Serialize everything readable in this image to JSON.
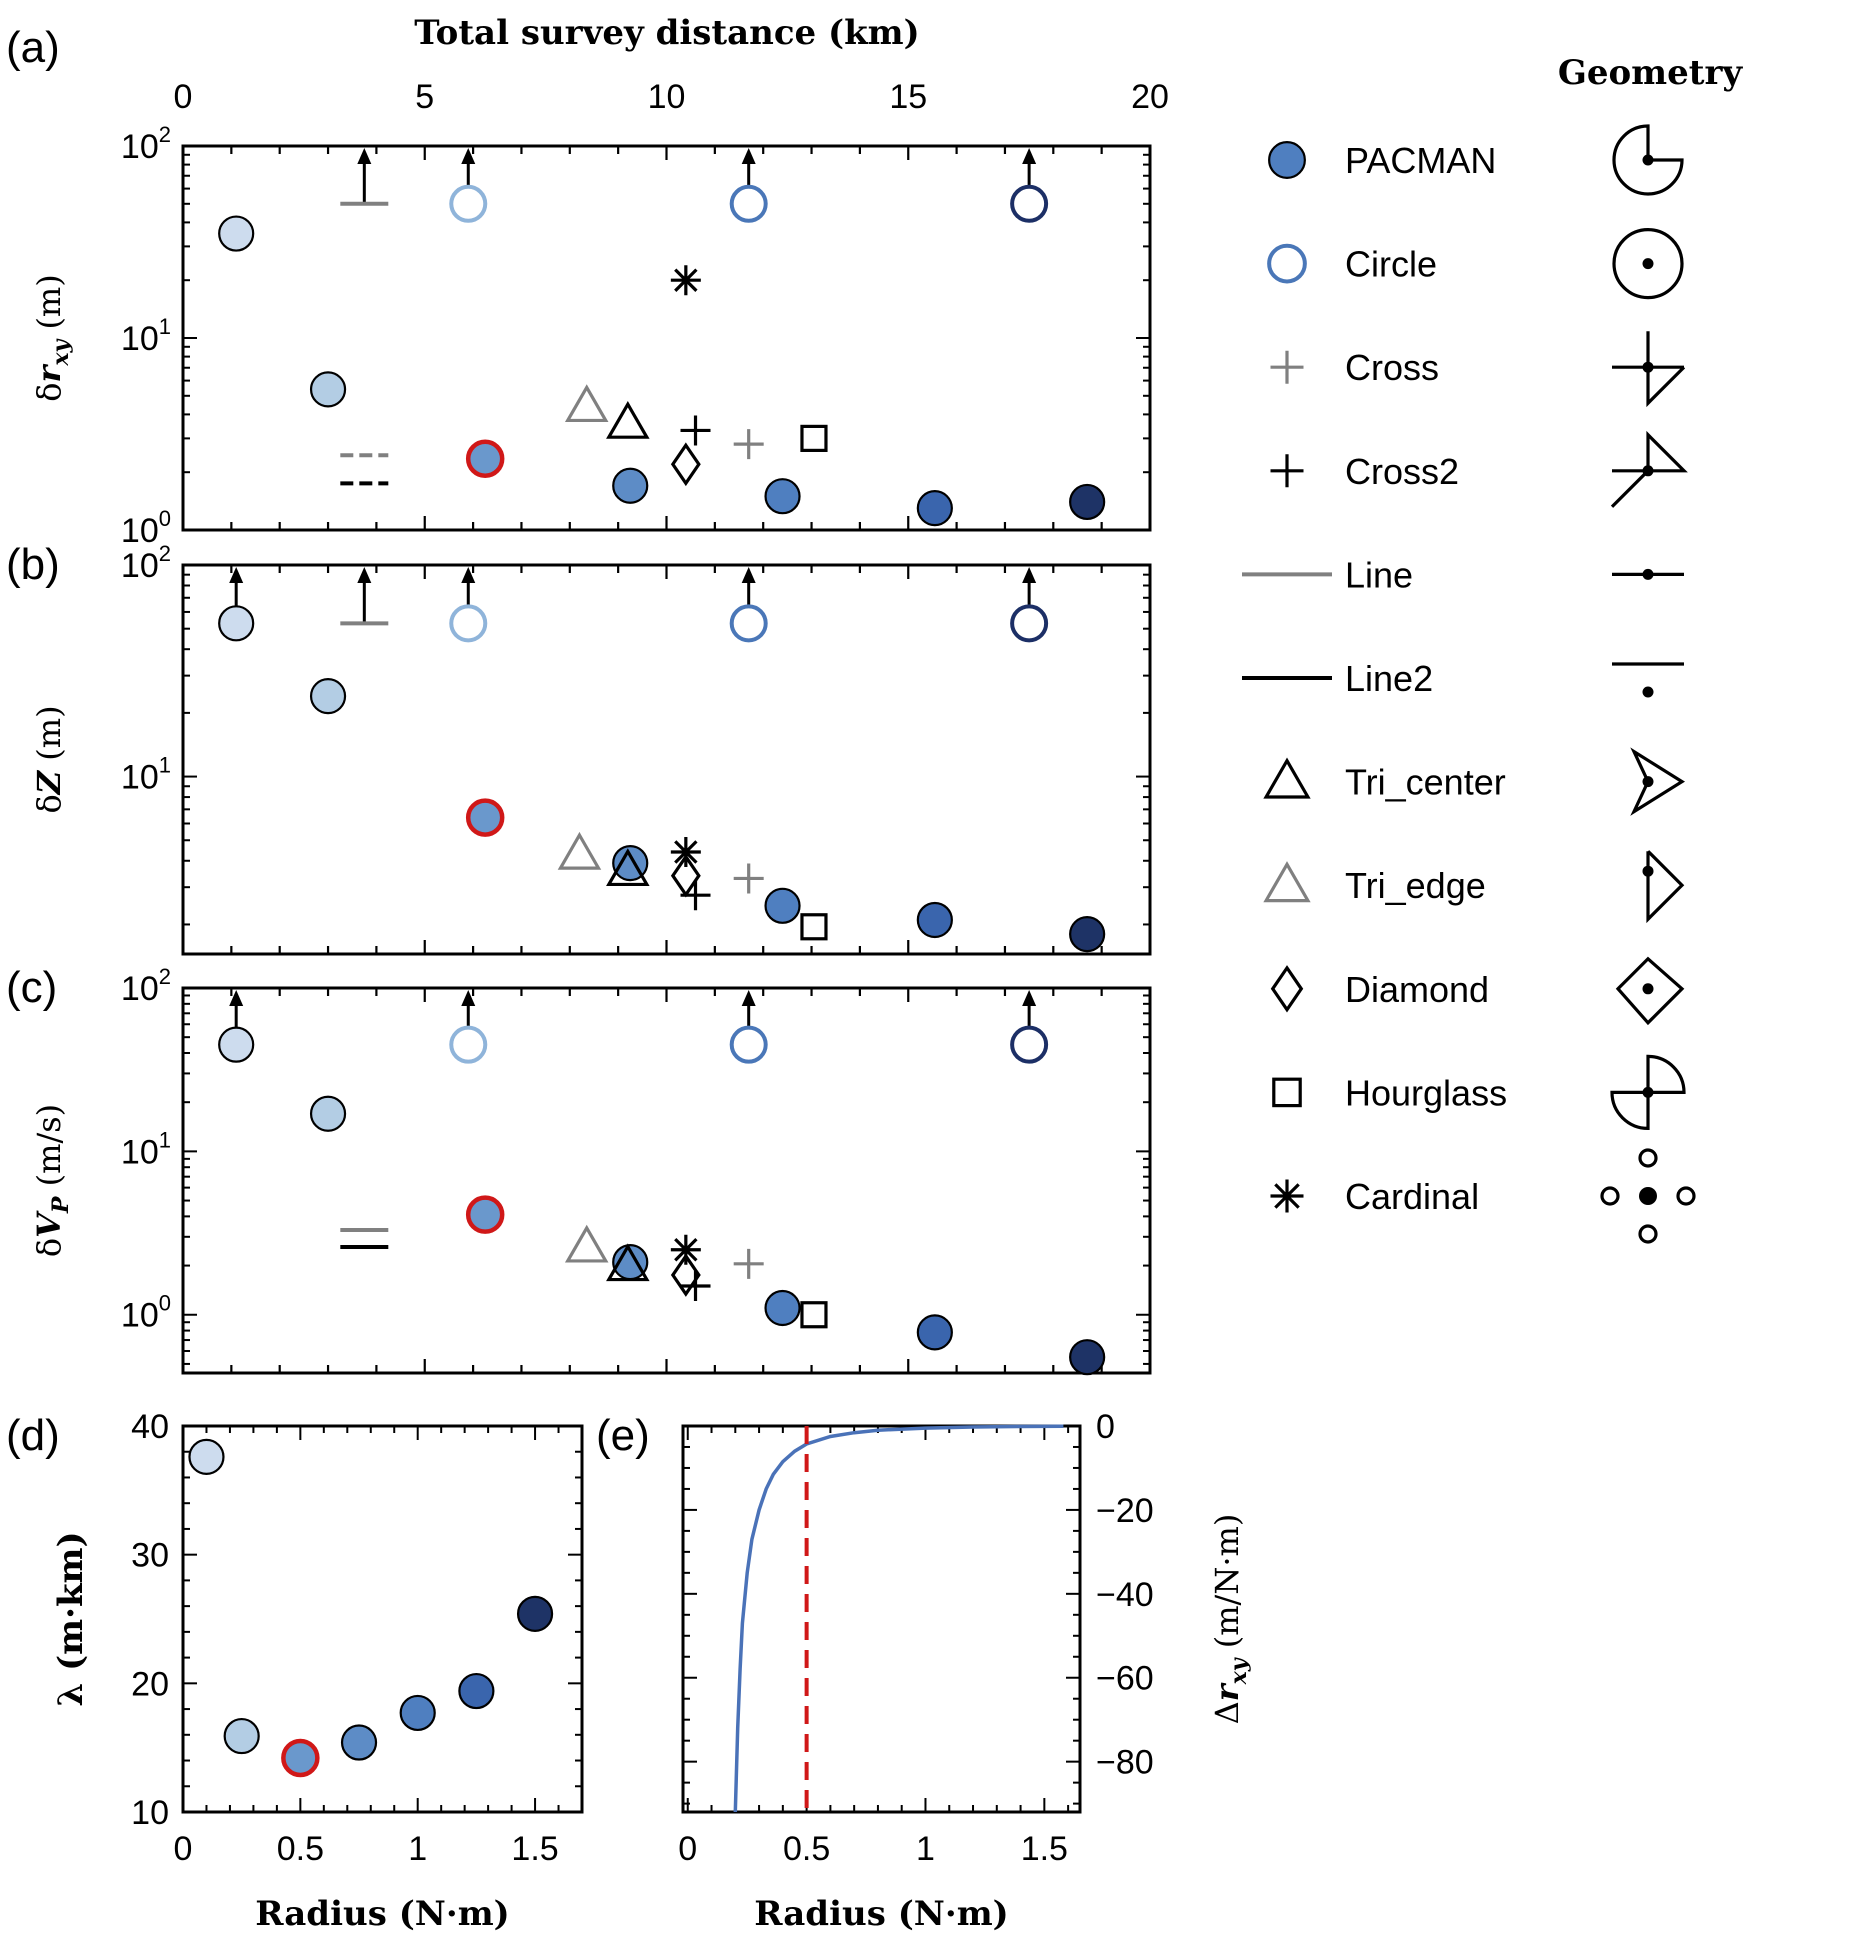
{
  "chart_data": [
    {
      "id": "a",
      "panel_label": "(a)",
      "type": "scatter",
      "top_xlabel": "Total survey distance (km)",
      "top_xticks": [
        "0",
        "5",
        "10",
        "15",
        "20"
      ],
      "xlim": [
        0,
        20
      ],
      "ylabel_base": "δ",
      "ylabel_var": "r",
      "ylabel_sub": "xy",
      "ylabel_unit": " (m)",
      "yscale": "log",
      "ylim": [
        1,
        100
      ],
      "yticks": [
        {
          "base": "10",
          "exp": "2",
          "value": 100
        },
        {
          "base": "10",
          "exp": "1",
          "value": 10
        },
        {
          "base": "10",
          "exp": "0",
          "value": 1
        }
      ],
      "points": [
        {
          "x": 1.1,
          "y": 35,
          "marker": "circle",
          "fill": "#cddcee",
          "stroke": "#000000"
        },
        {
          "x": 3.0,
          "y": 5.4,
          "marker": "circle",
          "fill": "#b3cde4",
          "stroke": "#000000"
        },
        {
          "x": 5.9,
          "y": 50,
          "marker": "circle-open",
          "stroke": "#8fb4da",
          "arrow": true
        },
        {
          "x": 6.25,
          "y": 2.35,
          "marker": "circle",
          "fill": "#6a98cc",
          "stroke": "#d01818"
        },
        {
          "x": 9.25,
          "y": 1.7,
          "marker": "circle",
          "fill": "#5d8cc6",
          "stroke": "#000000"
        },
        {
          "x": 11.7,
          "y": 50,
          "marker": "circle-open",
          "stroke": "#4a77b8",
          "arrow": true
        },
        {
          "x": 12.4,
          "y": 1.5,
          "marker": "circle",
          "fill": "#4f7fc0",
          "stroke": "#000000"
        },
        {
          "x": 15.55,
          "y": 1.3,
          "marker": "circle",
          "fill": "#3a65ad",
          "stroke": "#000000"
        },
        {
          "x": 17.5,
          "y": 50,
          "marker": "circle-open",
          "stroke": "#1c2f66",
          "arrow": true
        },
        {
          "x": 18.7,
          "y": 1.4,
          "marker": "circle",
          "fill": "#1e3366",
          "stroke": "#000000"
        },
        {
          "x": 3.75,
          "y": 50,
          "marker": "hline",
          "stroke": "#808080",
          "arrow": true
        },
        {
          "x": 3.75,
          "y": 2.45,
          "marker": "hline-dashed",
          "stroke": "#808080"
        },
        {
          "x": 3.75,
          "y": 1.75,
          "marker": "hline-dashed",
          "stroke": "#000000"
        },
        {
          "x": 8.35,
          "y": 4.4,
          "marker": "triangle",
          "stroke": "#808080"
        },
        {
          "x": 9.2,
          "y": 3.6,
          "marker": "triangle",
          "stroke": "#000000"
        },
        {
          "x": 10.4,
          "y": 20,
          "marker": "asterisk",
          "stroke": "#000000"
        },
        {
          "x": 10.4,
          "y": 2.2,
          "marker": "diamond",
          "stroke": "#000000"
        },
        {
          "x": 10.6,
          "y": 3.3,
          "marker": "plus",
          "stroke": "#000000"
        },
        {
          "x": 11.7,
          "y": 2.8,
          "marker": "plus",
          "stroke": "#808080"
        },
        {
          "x": 13.05,
          "y": 3.0,
          "marker": "square",
          "stroke": "#000000"
        }
      ]
    },
    {
      "id": "b",
      "panel_label": "(b)",
      "type": "scatter",
      "xlim": [
        0,
        20
      ],
      "ylabel_base": "δ",
      "ylabel_var": "Z",
      "ylabel_sub": "",
      "ylabel_unit": " (m)",
      "yscale": "log",
      "ylim": [
        1.45,
        100
      ],
      "yticks": [
        {
          "base": "10",
          "exp": "2",
          "value": 100
        },
        {
          "base": "10",
          "exp": "1",
          "value": 10
        }
      ],
      "points": [
        {
          "x": 1.1,
          "y": 53,
          "marker": "circle",
          "fill": "#cddcee",
          "stroke": "#000000",
          "arrow": true
        },
        {
          "x": 3.0,
          "y": 24,
          "marker": "circle",
          "fill": "#b3cde4",
          "stroke": "#000000"
        },
        {
          "x": 5.9,
          "y": 53,
          "marker": "circle-open",
          "stroke": "#8fb4da",
          "arrow": true
        },
        {
          "x": 6.25,
          "y": 6.4,
          "marker": "circle",
          "fill": "#6a98cc",
          "stroke": "#d01818"
        },
        {
          "x": 9.25,
          "y": 3.9,
          "marker": "circle",
          "fill": "#5d8cc6",
          "stroke": "#000000"
        },
        {
          "x": 11.7,
          "y": 53,
          "marker": "circle-open",
          "stroke": "#4a77b8",
          "arrow": true
        },
        {
          "x": 12.4,
          "y": 2.45,
          "marker": "circle",
          "fill": "#4f7fc0",
          "stroke": "#000000"
        },
        {
          "x": 15.55,
          "y": 2.1,
          "marker": "circle",
          "fill": "#3a65ad",
          "stroke": "#000000"
        },
        {
          "x": 17.5,
          "y": 53,
          "marker": "circle-open",
          "stroke": "#1c2f66",
          "arrow": true
        },
        {
          "x": 18.7,
          "y": 1.8,
          "marker": "circle",
          "fill": "#1e3366",
          "stroke": "#000000"
        },
        {
          "x": 3.75,
          "y": 53,
          "marker": "hline",
          "stroke": "#808080",
          "arrow": true
        },
        {
          "x": 8.2,
          "y": 4.3,
          "marker": "triangle",
          "stroke": "#808080"
        },
        {
          "x": 9.2,
          "y": 3.6,
          "marker": "triangle",
          "stroke": "#000000"
        },
        {
          "x": 10.4,
          "y": 4.4,
          "marker": "asterisk",
          "stroke": "#000000"
        },
        {
          "x": 10.4,
          "y": 3.4,
          "marker": "diamond",
          "stroke": "#000000"
        },
        {
          "x": 10.6,
          "y": 2.75,
          "marker": "plus",
          "stroke": "#000000"
        },
        {
          "x": 11.7,
          "y": 3.3,
          "marker": "plus",
          "stroke": "#808080"
        },
        {
          "x": 13.05,
          "y": 1.95,
          "marker": "square",
          "stroke": "#000000"
        }
      ]
    },
    {
      "id": "c",
      "panel_label": "(c)",
      "type": "scatter",
      "xlim": [
        0,
        20
      ],
      "ylabel_base": "δ",
      "ylabel_var": "V",
      "ylabel_sub": "P",
      "ylabel_unit": " (m/s)",
      "yscale": "log",
      "ylim": [
        0.44,
        100
      ],
      "yticks": [
        {
          "base": "10",
          "exp": "2",
          "value": 100
        },
        {
          "base": "10",
          "exp": "1",
          "value": 10
        },
        {
          "base": "10",
          "exp": "0",
          "value": 1
        }
      ],
      "points": [
        {
          "x": 1.1,
          "y": 45,
          "marker": "circle",
          "fill": "#cddcee",
          "stroke": "#000000",
          "arrow": true
        },
        {
          "x": 3.0,
          "y": 17,
          "marker": "circle",
          "fill": "#b3cde4",
          "stroke": "#000000"
        },
        {
          "x": 5.9,
          "y": 45,
          "marker": "circle-open",
          "stroke": "#8fb4da",
          "arrow": true
        },
        {
          "x": 6.25,
          "y": 4.1,
          "marker": "circle",
          "fill": "#6a98cc",
          "stroke": "#d01818"
        },
        {
          "x": 9.25,
          "y": 2.1,
          "marker": "circle",
          "fill": "#5d8cc6",
          "stroke": "#000000"
        },
        {
          "x": 11.7,
          "y": 45,
          "marker": "circle-open",
          "stroke": "#4a77b8",
          "arrow": true
        },
        {
          "x": 12.4,
          "y": 1.1,
          "marker": "circle",
          "fill": "#4f7fc0",
          "stroke": "#000000"
        },
        {
          "x": 15.55,
          "y": 0.78,
          "marker": "circle",
          "fill": "#3a65ad",
          "stroke": "#000000"
        },
        {
          "x": 17.5,
          "y": 45,
          "marker": "circle-open",
          "stroke": "#1c2f66",
          "arrow": true
        },
        {
          "x": 18.7,
          "y": 0.55,
          "marker": "circle",
          "fill": "#1e3366",
          "stroke": "#000000"
        },
        {
          "x": 3.75,
          "y": 3.3,
          "marker": "hline",
          "stroke": "#808080"
        },
        {
          "x": 3.75,
          "y": 2.6,
          "marker": "hline",
          "stroke": "#000000"
        },
        {
          "x": 8.35,
          "y": 2.6,
          "marker": "triangle",
          "stroke": "#808080"
        },
        {
          "x": 9.2,
          "y": 2.0,
          "marker": "triangle",
          "stroke": "#000000"
        },
        {
          "x": 10.4,
          "y": 2.5,
          "marker": "asterisk",
          "stroke": "#000000"
        },
        {
          "x": 10.4,
          "y": 1.75,
          "marker": "diamond",
          "stroke": "#000000"
        },
        {
          "x": 10.6,
          "y": 1.5,
          "marker": "plus",
          "stroke": "#000000"
        },
        {
          "x": 11.7,
          "y": 2.05,
          "marker": "plus",
          "stroke": "#808080"
        },
        {
          "x": 13.05,
          "y": 1.0,
          "marker": "square",
          "stroke": "#000000"
        }
      ]
    },
    {
      "id": "d",
      "panel_label": "(d)",
      "type": "scatter",
      "xlabel": "Radius (N·m)",
      "ylabel": "λ (m·km)",
      "xlim": [
        0,
        1.7
      ],
      "ylim": [
        10,
        40
      ],
      "xticks": [
        {
          "label": "0",
          "value": 0
        },
        {
          "label": "0.5",
          "value": 0.5
        },
        {
          "label": "1",
          "value": 1
        },
        {
          "label": "1.5",
          "value": 1.5
        }
      ],
      "yticks": [
        {
          "label": "40",
          "value": 40
        },
        {
          "label": "30",
          "value": 30
        },
        {
          "label": "20",
          "value": 20
        },
        {
          "label": "10",
          "value": 10
        }
      ],
      "points": [
        {
          "x": 0.1,
          "y": 37.6,
          "fill": "#cddcee",
          "stroke": "#000000"
        },
        {
          "x": 0.25,
          "y": 15.9,
          "fill": "#b3cde4",
          "stroke": "#000000"
        },
        {
          "x": 0.5,
          "y": 14.2,
          "fill": "#6a98cc",
          "stroke": "#d01818"
        },
        {
          "x": 0.75,
          "y": 15.4,
          "fill": "#5d8cc6",
          "stroke": "#000000"
        },
        {
          "x": 1.0,
          "y": 17.7,
          "fill": "#4f7fc0",
          "stroke": "#000000"
        },
        {
          "x": 1.25,
          "y": 19.4,
          "fill": "#3a65ad",
          "stroke": "#000000"
        },
        {
          "x": 1.5,
          "y": 25.4,
          "fill": "#1e3366",
          "stroke": "#000000"
        }
      ]
    },
    {
      "id": "e",
      "panel_label": "(e)",
      "type": "line",
      "xlabel": "Radius (N·m)",
      "ylabel_base": "Δ",
      "ylabel_var": "r",
      "ylabel_sub": "xy",
      "ylabel_unit": " (m/N·m)",
      "xlim": [
        -0.02,
        1.65
      ],
      "ylim": [
        -92,
        0
      ],
      "xticks": [
        {
          "label": "0",
          "value": 0
        },
        {
          "label": "0.5",
          "value": 0.5
        },
        {
          "label": "1",
          "value": 1
        },
        {
          "label": "1.5",
          "value": 1.5
        }
      ],
      "yticks": [
        {
          "label": "0",
          "value": 0
        },
        {
          "label": "−20",
          "value": -20
        },
        {
          "label": "−40",
          "value": -40
        },
        {
          "label": "−60",
          "value": -60
        },
        {
          "label": "−80",
          "value": -80
        }
      ],
      "series": [
        {
          "color": "#4a72b8",
          "x": [
            0.2,
            0.21,
            0.22,
            0.23,
            0.25,
            0.27,
            0.3,
            0.33,
            0.36,
            0.4,
            0.45,
            0.5,
            0.6,
            0.7,
            0.8,
            1.0,
            1.2,
            1.4,
            1.58
          ],
          "y": [
            -92,
            -72,
            -58,
            -47,
            -35,
            -27,
            -20,
            -15,
            -11.5,
            -8.5,
            -6,
            -4.3,
            -2.5,
            -1.6,
            -1.0,
            -0.5,
            -0.25,
            -0.12,
            -0.05
          ]
        }
      ],
      "reference_line": {
        "x": 0.5,
        "color": "#d01818",
        "style": "dashed"
      }
    }
  ],
  "legend": {
    "title": "Geometry",
    "items": [
      {
        "label": "PACMAN",
        "marker": "circle",
        "fill": "#4f7fc0",
        "stroke": "#000000",
        "geometry_icon": "pacman-geometry-icon"
      },
      {
        "label": "Circle",
        "marker": "circle-open",
        "stroke": "#4a77b8",
        "geometry_icon": "circle-geometry-icon"
      },
      {
        "label": "Cross",
        "marker": "plus",
        "stroke": "#808080",
        "geometry_icon": "cross-geometry-icon"
      },
      {
        "label": "Cross2",
        "marker": "plus",
        "stroke": "#000000",
        "geometry_icon": "cross2-geometry-icon"
      },
      {
        "label": "Line",
        "marker": "hline",
        "stroke": "#808080",
        "geometry_icon": "line-geometry-icon"
      },
      {
        "label": "Line2",
        "marker": "hline",
        "stroke": "#000000",
        "geometry_icon": "line2-geometry-icon"
      },
      {
        "label": "Tri_center",
        "marker": "triangle",
        "stroke": "#000000",
        "geometry_icon": "tri-center-geometry-icon"
      },
      {
        "label": "Tri_edge",
        "marker": "triangle",
        "stroke": "#808080",
        "geometry_icon": "tri-edge-geometry-icon"
      },
      {
        "label": "Diamond",
        "marker": "diamond",
        "stroke": "#000000",
        "geometry_icon": "diamond-geometry-icon"
      },
      {
        "label": "Hourglass",
        "marker": "square",
        "stroke": "#000000",
        "geometry_icon": "hourglass-geometry-icon"
      },
      {
        "label": "Cardinal",
        "marker": "asterisk",
        "stroke": "#000000",
        "geometry_icon": "cardinal-geometry-icon"
      }
    ]
  }
}
